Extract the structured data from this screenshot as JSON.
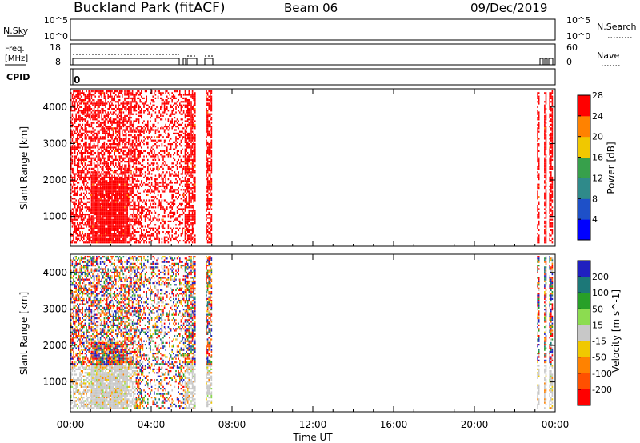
{
  "header": {
    "station": "Buckland Park (fitACF)",
    "beam": "Beam 06",
    "date": "09/Dec/2019"
  },
  "noise_panel": {
    "left_label": "N.Sky",
    "right_label": "N.Search",
    "left_ticks": [
      "10^5",
      "10^0"
    ],
    "right_ticks": [
      "10^5",
      "10^0"
    ]
  },
  "freq_panel": {
    "left_label_line1": "Freq.",
    "left_label_line2": "[MHz]",
    "left_ticks": [
      "18",
      "8"
    ],
    "right_label": "Nave",
    "right_ticks": [
      "60",
      "0"
    ]
  },
  "cpid_panel": {
    "label": "CPID",
    "value": "0"
  },
  "chart_data": [
    {
      "type": "heatmap",
      "panel": "power",
      "ylabel": "Slant Range [km]",
      "yticks": [
        "1000",
        "2000",
        "3000",
        "4000"
      ],
      "ylim": [
        180,
        4500
      ],
      "xlim": [
        0,
        24
      ],
      "colorbar": {
        "label": "Power [dB]",
        "ticks": [
          "4",
          "8",
          "12",
          "16",
          "20",
          "24",
          "28"
        ],
        "colors": [
          "#0000ff",
          "#1e50c8",
          "#2f8a8a",
          "#37a04b",
          "#f0c800",
          "#ff8200",
          "#ff0000"
        ]
      },
      "data_segments_hours": [
        [
          0,
          5.6
        ],
        [
          5.65,
          5.85
        ],
        [
          5.95,
          6.15
        ],
        [
          6.7,
          7.0
        ],
        [
          23.1,
          23.2
        ],
        [
          23.45,
          23.55
        ],
        [
          23.7,
          23.85
        ]
      ]
    },
    {
      "type": "heatmap",
      "panel": "velocity",
      "ylabel": "Slant Range [km]",
      "yticks": [
        "1000",
        "2000",
        "3000",
        "4000"
      ],
      "ylim": [
        180,
        4500
      ],
      "xlim": [
        0,
        24
      ],
      "colorbar": {
        "label": "Velocity [m s^-1]",
        "ticks": [
          "200",
          "100",
          "50",
          "15",
          "-15",
          "-50",
          "-100",
          "-200"
        ],
        "colors": [
          "#2020c0",
          "#1c7878",
          "#28a028",
          "#8cdc50",
          "#c8c8c8",
          "#f0c800",
          "#ff8200",
          "#ff5000",
          "#ff0000"
        ]
      },
      "data_segments_hours": [
        [
          0,
          5.6
        ],
        [
          5.65,
          5.85
        ],
        [
          5.95,
          6.15
        ],
        [
          6.7,
          7.0
        ],
        [
          23.1,
          23.2
        ],
        [
          23.45,
          23.55
        ],
        [
          23.7,
          23.85
        ]
      ]
    }
  ],
  "x_axis": {
    "label": "Time UT",
    "ticks": [
      "00:00",
      "04:00",
      "08:00",
      "12:00",
      "16:00",
      "20:00",
      "00:00"
    ]
  }
}
